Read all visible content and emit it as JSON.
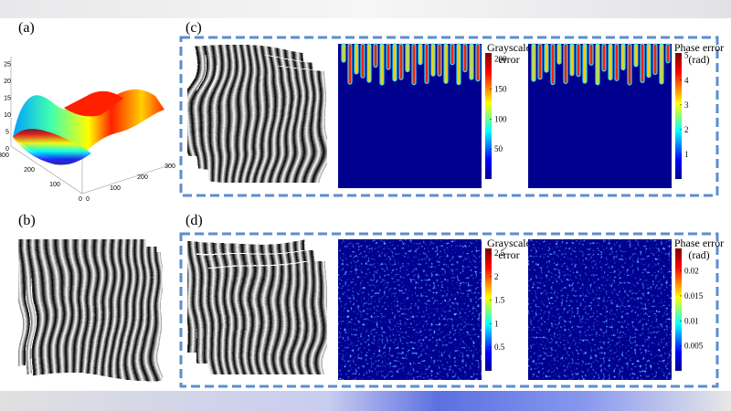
{
  "panels": [
    {
      "label": "(a)"
    },
    {
      "label": "(b)"
    },
    {
      "label": "(c)"
    },
    {
      "label": "(d)"
    }
  ],
  "surface_axes": {
    "z_ticks": [
      0,
      5,
      10,
      15,
      20,
      25
    ],
    "y_ticks": [
      0,
      100,
      200,
      300
    ],
    "x_ticks": [
      0,
      100,
      200,
      300
    ]
  },
  "colorbars": [
    {
      "title": [
        "Grayscale",
        "error"
      ],
      "lim": [
        0,
        210
      ],
      "ticks": [
        50,
        100,
        150,
        200
      ]
    },
    {
      "title": [
        "Phase error",
        "(rad)"
      ],
      "lim": [
        0,
        5.1
      ],
      "ticks": [
        1,
        2,
        3,
        4,
        5
      ]
    },
    {
      "title": [
        "Grayscale",
        "error"
      ],
      "lim": [
        0,
        2.6
      ],
      "ticks": [
        0.5,
        1,
        1.5,
        2,
        2.5
      ]
    },
    {
      "title": [
        "Phase error",
        "(rad)"
      ],
      "lim": [
        0,
        0.0245
      ],
      "ticks": [
        0.005,
        0.01,
        0.015,
        0.02
      ]
    }
  ]
}
